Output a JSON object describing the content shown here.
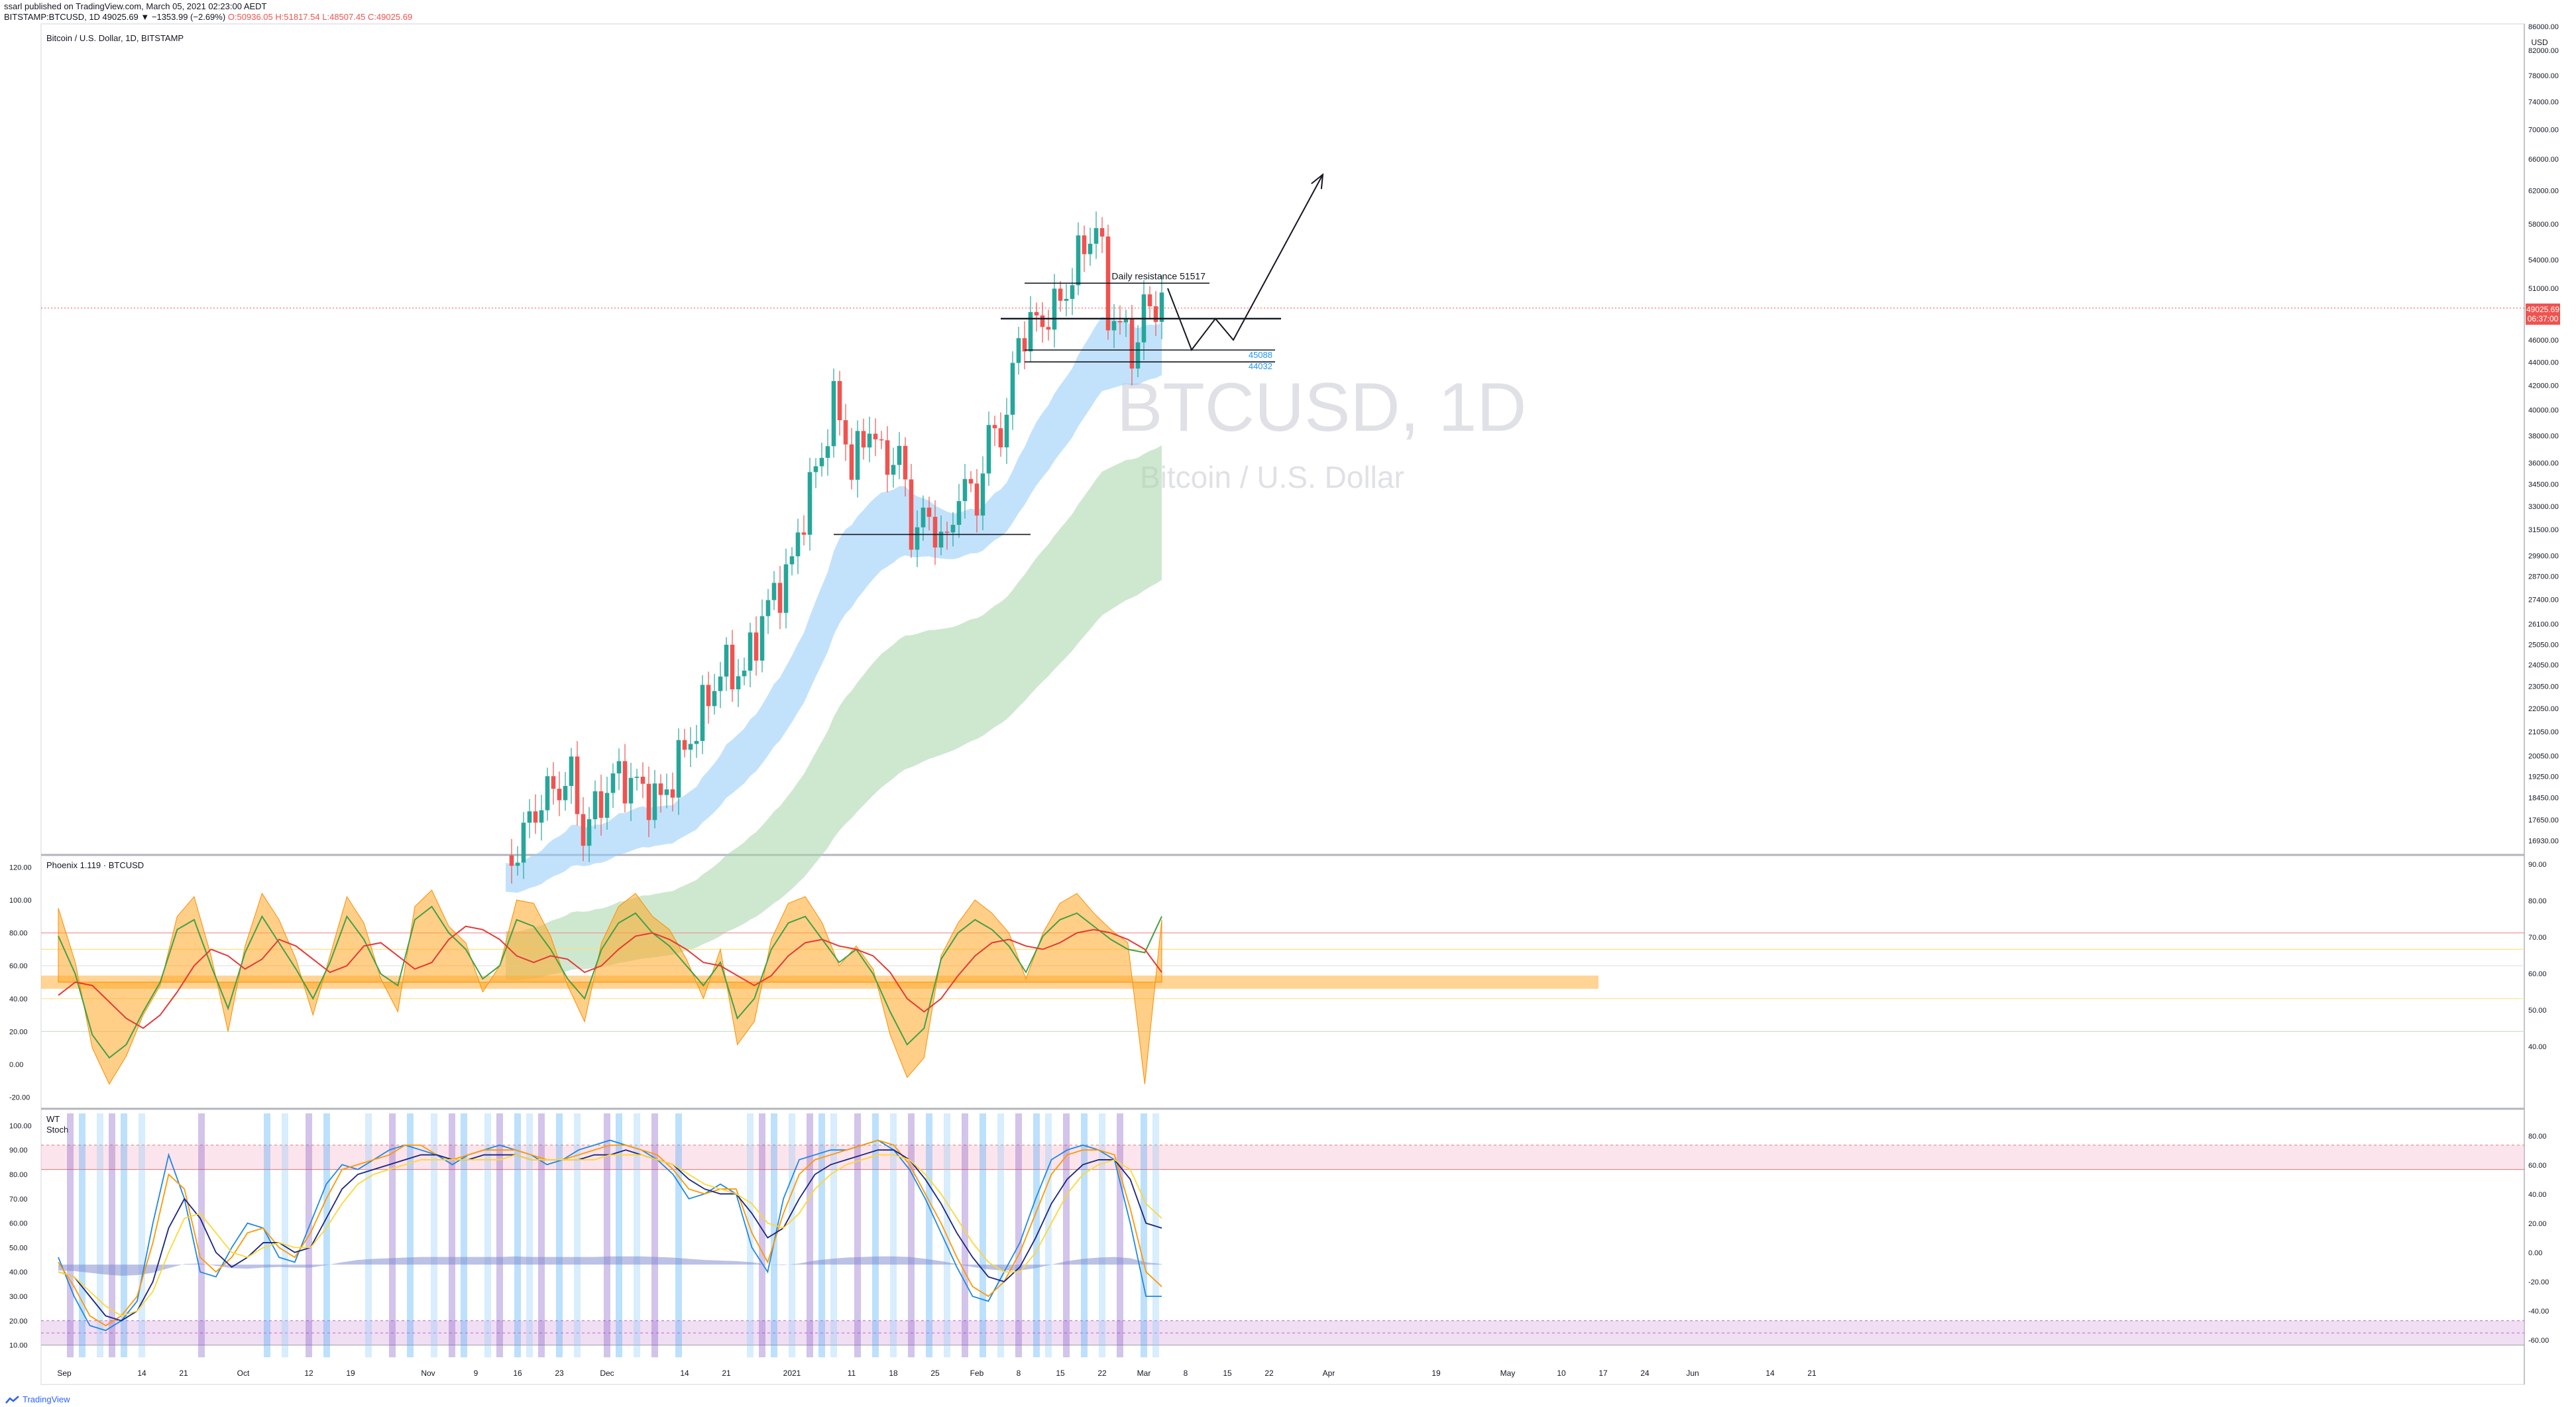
{
  "header": {
    "published": "ssarl published on TradingView.com, March 05, 2021 02:23:00 AEDT",
    "symbol_line": "BITSTAMP:BTCUSD, 1D 49025.69 ▼ −1353.99 (−2.69%)",
    "ohlc": {
      "O": "O:50936.05",
      "H": "H:51817.54",
      "L": "L:48507.45",
      "C": "C:49025.69"
    }
  },
  "panes": {
    "price": {
      "legend": "Bitcoin / U.S. Dollar, 1D, BITSTAMP",
      "watermark_symbol": "BTCUSD, 1D",
      "watermark_name": "Bitcoin / U.S. Dollar",
      "currency": "USD",
      "last_price": "49025.69",
      "countdown": "06:37:00"
    },
    "phoenix": {
      "legend": "Phoenix 1.119 · BTCUSD"
    },
    "wt": {
      "legend_1": "WT",
      "legend_2": "Stoch"
    }
  },
  "footer": {
    "brand": "TradingView"
  },
  "chart_data": [
    {
      "type": "candlestick",
      "title": "Bitcoin / U.S. Dollar, 1D, BITSTAMP",
      "scale": "log",
      "ylim": [
        16500,
        86000
      ],
      "y_ticks": [
        "86000.00",
        "82000.00",
        "78000.00",
        "74000.00",
        "70000.00",
        "66000.00",
        "62000.00",
        "58000.00",
        "54000.00",
        "51000.00",
        "48000.00",
        "46000.00",
        "44000.00",
        "42000.00",
        "40000.00",
        "38000.00",
        "36000.00",
        "34500.00",
        "33000.00",
        "31500.00",
        "29900.00",
        "28700.00",
        "27400.00",
        "26100.00",
        "25050.00",
        "24050.00",
        "23050.00",
        "22050.00",
        "21050.00",
        "20050.00",
        "19250.00",
        "18450.00",
        "17650.00",
        "16930.00"
      ],
      "x_ticks": [
        "Sep",
        "14",
        "21",
        "Oct",
        "12",
        "19",
        "Nov",
        "9",
        "16",
        "23",
        "Dec",
        "14",
        "21",
        "2021",
        "11",
        "18",
        "25",
        "Feb",
        "8",
        "15",
        "22",
        "Mar",
        "8",
        "15",
        "22",
        "Apr",
        "19",
        "May",
        "10",
        "17",
        "24",
        "Jun",
        "14",
        "21"
      ],
      "close_path": [
        [
          "2020-11-14",
          15900
        ],
        [
          "2020-11-20",
          18400
        ],
        [
          "2020-11-25",
          19200
        ],
        [
          "2020-11-27",
          17150
        ],
        [
          "2020-12-01",
          18800
        ],
        [
          "2020-12-03",
          19300
        ],
        [
          "2020-12-10",
          18300
        ],
        [
          "2020-12-16",
          21300
        ],
        [
          "2020-12-20",
          23800
        ],
        [
          "2020-12-24",
          23700
        ],
        [
          "2020-12-27",
          26400
        ],
        [
          "2021-01-01",
          29400
        ],
        [
          "2021-01-03",
          32800
        ],
        [
          "2021-01-06",
          36700
        ],
        [
          "2021-01-08",
          40500
        ],
        [
          "2021-01-10",
          38100
        ],
        [
          "2021-01-11",
          35400
        ],
        [
          "2021-01-14",
          39000
        ],
        [
          "2021-01-16",
          36200
        ],
        [
          "2021-01-19",
          36500
        ],
        [
          "2021-01-21",
          31500
        ],
        [
          "2021-01-24",
          32200
        ],
        [
          "2021-01-27",
          30400
        ],
        [
          "2021-01-29",
          34300
        ],
        [
          "2021-02-01",
          33500
        ],
        [
          "2021-02-03",
          37700
        ],
        [
          "2021-02-06",
          39200
        ],
        [
          "2021-02-08",
          46400
        ],
        [
          "2021-02-11",
          47600
        ],
        [
          "2021-02-14",
          48800
        ],
        [
          "2021-02-17",
          52100
        ],
        [
          "2021-02-19",
          55900
        ],
        [
          "2021-02-21",
          57500
        ],
        [
          "2021-02-22",
          54100
        ],
        [
          "2021-02-23",
          48900
        ],
        [
          "2021-02-25",
          47100
        ],
        [
          "2021-02-28",
          45200
        ],
        [
          "2021-03-01",
          49600
        ],
        [
          "2021-03-02",
          48400
        ],
        [
          "2021-03-03",
          50400
        ],
        [
          "2021-03-04",
          49025.69
        ]
      ],
      "levels": [
        {
          "label": "Daily resistance 51517",
          "value": 51517
        },
        {
          "label": "",
          "value": 48000
        },
        {
          "label": "45088",
          "value": 45088
        },
        {
          "label": "44032",
          "value": 44032
        },
        {
          "label": "",
          "value": 31200
        }
      ],
      "projection": [
        [
          "2021-03-05",
          51000
        ],
        [
          "2021-03-09",
          45100
        ],
        [
          "2021-03-13",
          48000
        ],
        [
          "2021-03-16",
          46000
        ],
        [
          "2021-03-31",
          64000
        ]
      ]
    },
    {
      "type": "line",
      "title": "Phoenix 1.119 · BTCUSD",
      "ylim": [
        -25,
        125
      ],
      "y_ticks_left": [
        "120.00",
        "100.00",
        "80.00",
        "60.00",
        "40.00",
        "20.00",
        "0.00",
        "-20.00"
      ],
      "y_ticks_right": [
        "90.00",
        "80.00",
        "70.00",
        "60.00",
        "50.00",
        "40.00"
      ],
      "series": [
        {
          "name": "",
          "values": [
            78,
            55,
            18,
            4,
            12,
            32,
            50,
            82,
            88,
            60,
            34,
            68,
            90,
            74,
            58,
            40,
            62,
            90,
            76,
            55,
            48,
            88,
            96,
            80,
            70,
            52,
            60,
            88,
            84,
            70,
            52,
            40,
            70,
            86,
            92,
            80,
            72,
            60,
            48,
            62,
            28,
            40,
            70,
            86,
            90,
            76,
            62,
            70,
            55,
            32,
            12,
            22,
            64,
            80,
            88,
            82,
            72,
            56,
            78,
            88,
            92,
            84,
            76,
            70,
            68,
            90
          ]
        },
        {
          "name": "",
          "values": [
            42,
            50,
            48,
            38,
            28,
            22,
            30,
            44,
            60,
            70,
            66,
            58,
            64,
            76,
            72,
            64,
            56,
            60,
            72,
            74,
            66,
            58,
            62,
            76,
            84,
            82,
            76,
            66,
            62,
            66,
            64,
            56,
            60,
            70,
            78,
            80,
            76,
            70,
            62,
            60,
            54,
            48,
            54,
            66,
            74,
            76,
            72,
            70,
            66,
            56,
            40,
            32,
            40,
            54,
            66,
            74,
            76,
            72,
            70,
            74,
            80,
            82,
            80,
            76,
            70,
            56
          ]
        },
        {
          "name": "",
          "values": [
            95,
            62,
            10,
            -12,
            5,
            30,
            48,
            90,
            102,
            66,
            20,
            72,
            104,
            88,
            64,
            30,
            66,
            102,
            86,
            52,
            32,
            96,
            106,
            84,
            74,
            44,
            60,
            100,
            98,
            78,
            48,
            26,
            74,
            96,
            104,
            90,
            82,
            64,
            40,
            70,
            12,
            26,
            76,
            98,
            102,
            86,
            60,
            72,
            58,
            18,
            -8,
            4,
            66,
            86,
            100,
            92,
            80,
            52,
            80,
            98,
            104,
            92,
            82,
            74,
            -12,
            88
          ]
        }
      ]
    },
    {
      "type": "line",
      "title": "WT / Stoch",
      "ylim": [
        5,
        105
      ],
      "y_ticks_left": [
        "100.00",
        "90.00",
        "80.00",
        "70.00",
        "60.00",
        "50.00",
        "40.00",
        "30.00",
        "20.00",
        "10.00"
      ],
      "y_ticks_right": [
        "80.00",
        "60.00",
        "40.00",
        "20.00",
        "0.00",
        "-20.00",
        "-40.00",
        "-60.00"
      ],
      "series": [
        {
          "name": "",
          "values": [
            46,
            30,
            18,
            16,
            20,
            28,
            60,
            88,
            70,
            40,
            38,
            50,
            60,
            58,
            46,
            44,
            60,
            76,
            84,
            82,
            86,
            90,
            92,
            90,
            88,
            84,
            88,
            90,
            92,
            90,
            88,
            84,
            86,
            90,
            92,
            94,
            92,
            90,
            86,
            80,
            70,
            72,
            76,
            72,
            50,
            40,
            70,
            86,
            88,
            90,
            90,
            92,
            94,
            90,
            82,
            70,
            56,
            42,
            30,
            28,
            40,
            52,
            70,
            86,
            90,
            92,
            90,
            86,
            60,
            30,
            30
          ]
        },
        {
          "name": "",
          "values": [
            44,
            34,
            22,
            18,
            22,
            30,
            52,
            80,
            74,
            46,
            40,
            46,
            56,
            58,
            50,
            46,
            56,
            70,
            82,
            84,
            86,
            88,
            92,
            92,
            88,
            86,
            88,
            90,
            90,
            90,
            88,
            86,
            86,
            88,
            90,
            92,
            92,
            90,
            88,
            82,
            74,
            72,
            74,
            74,
            56,
            44,
            64,
            80,
            86,
            88,
            90,
            92,
            94,
            92,
            84,
            72,
            60,
            46,
            34,
            30,
            36,
            48,
            64,
            80,
            88,
            90,
            90,
            88,
            66,
            40,
            34
          ]
        },
        {
          "name": "",
          "values": [
            40,
            38,
            30,
            22,
            20,
            24,
            36,
            58,
            70,
            62,
            48,
            42,
            46,
            52,
            52,
            48,
            50,
            62,
            74,
            80,
            82,
            84,
            86,
            88,
            88,
            86,
            86,
            88,
            88,
            88,
            86,
            86,
            86,
            86,
            88,
            88,
            90,
            88,
            86,
            84,
            78,
            74,
            72,
            72,
            64,
            54,
            58,
            70,
            80,
            84,
            86,
            88,
            90,
            90,
            86,
            78,
            68,
            56,
            46,
            38,
            36,
            42,
            54,
            68,
            78,
            84,
            86,
            86,
            78,
            60,
            58
          ]
        },
        {
          "name": "",
          "values": [
            40,
            38,
            32,
            26,
            22,
            24,
            32,
            48,
            62,
            64,
            56,
            48,
            46,
            50,
            52,
            50,
            50,
            58,
            68,
            76,
            80,
            82,
            84,
            86,
            86,
            86,
            86,
            86,
            86,
            88,
            86,
            86,
            86,
            86,
            86,
            88,
            88,
            88,
            86,
            84,
            80,
            76,
            74,
            72,
            68,
            60,
            58,
            64,
            74,
            80,
            84,
            86,
            88,
            88,
            86,
            80,
            72,
            62,
            52,
            44,
            40,
            40,
            48,
            60,
            72,
            80,
            84,
            86,
            82,
            68,
            62
          ]
        }
      ]
    }
  ]
}
